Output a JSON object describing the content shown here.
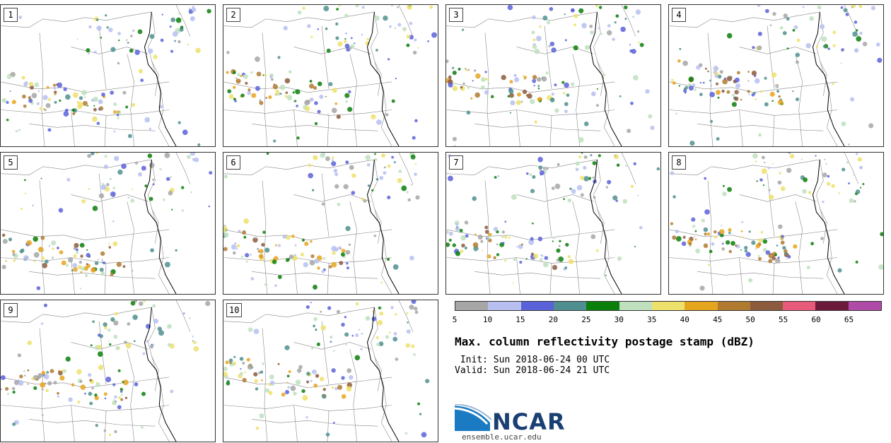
{
  "panels": [
    {
      "label": "1"
    },
    {
      "label": "2"
    },
    {
      "label": "3"
    },
    {
      "label": "4"
    },
    {
      "label": "5"
    },
    {
      "label": "6"
    },
    {
      "label": "7"
    },
    {
      "label": "8"
    },
    {
      "label": "9"
    },
    {
      "label": "10"
    }
  ],
  "colorbar": {
    "colors": [
      "#a6a6a6",
      "#b7bff0",
      "#5a62d9",
      "#4f8f8f",
      "#0a7f0a",
      "#bfe0bf",
      "#ede16b",
      "#e6a51e",
      "#b07a30",
      "#8c5a3c",
      "#e85a7a",
      "#6b1a3a",
      "#b04aa8"
    ],
    "ticks": [
      "5",
      "10",
      "15",
      "20",
      "25",
      "30",
      "35",
      "40",
      "45",
      "50",
      "55",
      "60",
      "65"
    ]
  },
  "title": "Max. column reflectivity postage stamp (dBZ)",
  "init": " Init: Sun 2018-06-24 00 UTC",
  "valid": "Valid: Sun 2018-06-24 21 UTC",
  "logo": {
    "text": "NCAR",
    "url": "ensemble.ucar.edu",
    "icon": "ncar-swoosh-icon"
  }
}
